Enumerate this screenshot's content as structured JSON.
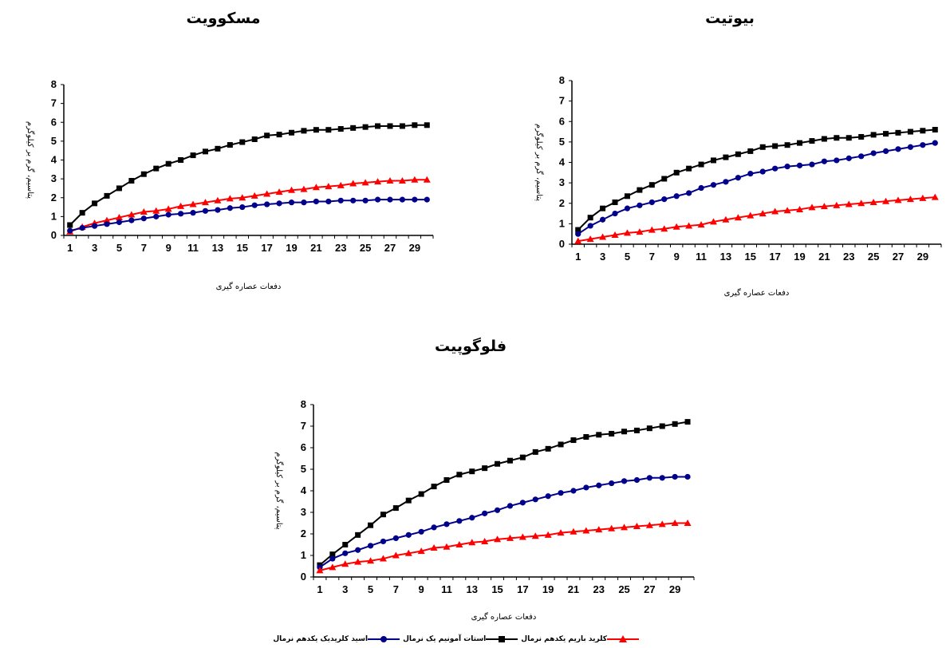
{
  "legend": {
    "barium": "کلرید باریم یکدهم نرمال",
    "ammonium": "استات آمونیم یک نرمال",
    "acid": "اسید  کلریدیک یکدهم نرمال"
  },
  "colors": {
    "barium": "#ff0000",
    "ammonium": "#000000",
    "acid": "#00008b"
  },
  "chart_data": [
    {
      "type": "line",
      "title": "مسکوویت",
      "xlabel": "دفعات عصاره گیری",
      "ylabel": "پتاسیم، گرم بر کیلوگرم",
      "x": [
        1,
        2,
        3,
        4,
        5,
        6,
        7,
        8,
        9,
        10,
        11,
        12,
        13,
        14,
        15,
        16,
        17,
        18,
        19,
        20,
        21,
        22,
        23,
        24,
        25,
        26,
        27,
        28,
        29,
        30
      ],
      "xticks": [
        1,
        3,
        5,
        7,
        9,
        11,
        13,
        15,
        17,
        19,
        21,
        23,
        25,
        27,
        29
      ],
      "ylim": [
        0,
        8
      ],
      "yticks": [
        0,
        1,
        2,
        3,
        4,
        5,
        6,
        7,
        8
      ],
      "series": [
        {
          "key": "ammonium",
          "marker": "square",
          "values": [
            0.55,
            1.2,
            1.7,
            2.1,
            2.5,
            2.9,
            3.25,
            3.55,
            3.8,
            4.0,
            4.25,
            4.45,
            4.6,
            4.8,
            4.95,
            5.1,
            5.3,
            5.35,
            5.45,
            5.55,
            5.6,
            5.6,
            5.65,
            5.7,
            5.75,
            5.8,
            5.8,
            5.8,
            5.85,
            5.85
          ]
        },
        {
          "key": "barium",
          "marker": "triangle",
          "values": [
            0.2,
            0.45,
            0.65,
            0.8,
            0.95,
            1.1,
            1.25,
            1.3,
            1.4,
            1.55,
            1.65,
            1.75,
            1.85,
            1.95,
            2.0,
            2.1,
            2.2,
            2.3,
            2.4,
            2.45,
            2.55,
            2.6,
            2.65,
            2.75,
            2.8,
            2.85,
            2.9,
            2.9,
            2.95,
            2.95
          ]
        },
        {
          "key": "acid",
          "marker": "circle",
          "values": [
            0.25,
            0.4,
            0.5,
            0.6,
            0.7,
            0.8,
            0.9,
            1.0,
            1.1,
            1.15,
            1.2,
            1.3,
            1.35,
            1.45,
            1.5,
            1.6,
            1.65,
            1.7,
            1.75,
            1.75,
            1.8,
            1.8,
            1.85,
            1.85,
            1.85,
            1.9,
            1.9,
            1.9,
            1.9,
            1.9
          ]
        }
      ]
    },
    {
      "type": "line",
      "title": "بیوتیت",
      "xlabel": "دفعات عصاره گیری",
      "ylabel": "پتاسیم، گرم بر کیلوگرم",
      "x": [
        1,
        2,
        3,
        4,
        5,
        6,
        7,
        8,
        9,
        10,
        11,
        12,
        13,
        14,
        15,
        16,
        17,
        18,
        19,
        20,
        21,
        22,
        23,
        24,
        25,
        26,
        27,
        28,
        29,
        30
      ],
      "xticks": [
        1,
        3,
        5,
        7,
        9,
        11,
        13,
        15,
        17,
        19,
        21,
        23,
        25,
        27,
        29
      ],
      "ylim": [
        0,
        8
      ],
      "yticks": [
        0,
        1,
        2,
        3,
        4,
        5,
        6,
        7,
        8
      ],
      "series": [
        {
          "key": "ammonium",
          "marker": "square",
          "values": [
            0.7,
            1.3,
            1.75,
            2.05,
            2.35,
            2.65,
            2.9,
            3.2,
            3.5,
            3.7,
            3.9,
            4.1,
            4.25,
            4.4,
            4.55,
            4.75,
            4.8,
            4.85,
            4.95,
            5.05,
            5.15,
            5.2,
            5.2,
            5.25,
            5.35,
            5.4,
            5.45,
            5.5,
            5.55,
            5.6
          ]
        },
        {
          "key": "acid",
          "marker": "circle",
          "values": [
            0.5,
            0.9,
            1.2,
            1.5,
            1.75,
            1.9,
            2.05,
            2.2,
            2.35,
            2.5,
            2.75,
            2.9,
            3.05,
            3.25,
            3.45,
            3.55,
            3.7,
            3.8,
            3.85,
            3.9,
            4.05,
            4.1,
            4.2,
            4.3,
            4.45,
            4.55,
            4.65,
            4.75,
            4.85,
            4.95
          ]
        },
        {
          "key": "barium",
          "marker": "triangle",
          "values": [
            0.15,
            0.25,
            0.35,
            0.45,
            0.55,
            0.6,
            0.7,
            0.75,
            0.85,
            0.9,
            0.95,
            1.1,
            1.2,
            1.3,
            1.4,
            1.5,
            1.6,
            1.65,
            1.7,
            1.8,
            1.85,
            1.9,
            1.95,
            2.0,
            2.05,
            2.1,
            2.15,
            2.2,
            2.25,
            2.3
          ]
        }
      ]
    },
    {
      "type": "line",
      "title": "فلوگوپیت",
      "xlabel": "دفعات عصاره گیری",
      "ylabel": "پتاسیم، گرم بر کیلوگرم",
      "x": [
        1,
        2,
        3,
        4,
        5,
        6,
        7,
        8,
        9,
        10,
        11,
        12,
        13,
        14,
        15,
        16,
        17,
        18,
        19,
        20,
        21,
        22,
        23,
        24,
        25,
        26,
        27,
        28,
        29,
        30
      ],
      "xticks": [
        1,
        3,
        5,
        7,
        9,
        11,
        13,
        15,
        17,
        19,
        21,
        23,
        25,
        27,
        29
      ],
      "ylim": [
        0,
        8
      ],
      "yticks": [
        0,
        1,
        2,
        3,
        4,
        5,
        6,
        7,
        8
      ],
      "series": [
        {
          "key": "ammonium",
          "marker": "square",
          "values": [
            0.55,
            1.05,
            1.5,
            1.95,
            2.4,
            2.9,
            3.2,
            3.55,
            3.85,
            4.2,
            4.5,
            4.75,
            4.9,
            5.05,
            5.25,
            5.4,
            5.55,
            5.8,
            5.95,
            6.15,
            6.35,
            6.5,
            6.6,
            6.65,
            6.75,
            6.8,
            6.9,
            7.0,
            7.1,
            7.2
          ]
        },
        {
          "key": "acid",
          "marker": "circle",
          "values": [
            0.45,
            0.85,
            1.1,
            1.25,
            1.45,
            1.65,
            1.8,
            1.95,
            2.1,
            2.3,
            2.45,
            2.6,
            2.75,
            2.95,
            3.1,
            3.3,
            3.45,
            3.6,
            3.75,
            3.9,
            4.0,
            4.15,
            4.25,
            4.35,
            4.45,
            4.5,
            4.6,
            4.6,
            4.65,
            4.65
          ]
        },
        {
          "key": "barium",
          "marker": "triangle",
          "values": [
            0.3,
            0.45,
            0.6,
            0.7,
            0.75,
            0.85,
            1.0,
            1.1,
            1.2,
            1.35,
            1.4,
            1.5,
            1.6,
            1.65,
            1.75,
            1.8,
            1.85,
            1.9,
            1.95,
            2.05,
            2.1,
            2.15,
            2.2,
            2.25,
            2.3,
            2.35,
            2.4,
            2.45,
            2.5,
            2.5
          ]
        }
      ]
    }
  ]
}
